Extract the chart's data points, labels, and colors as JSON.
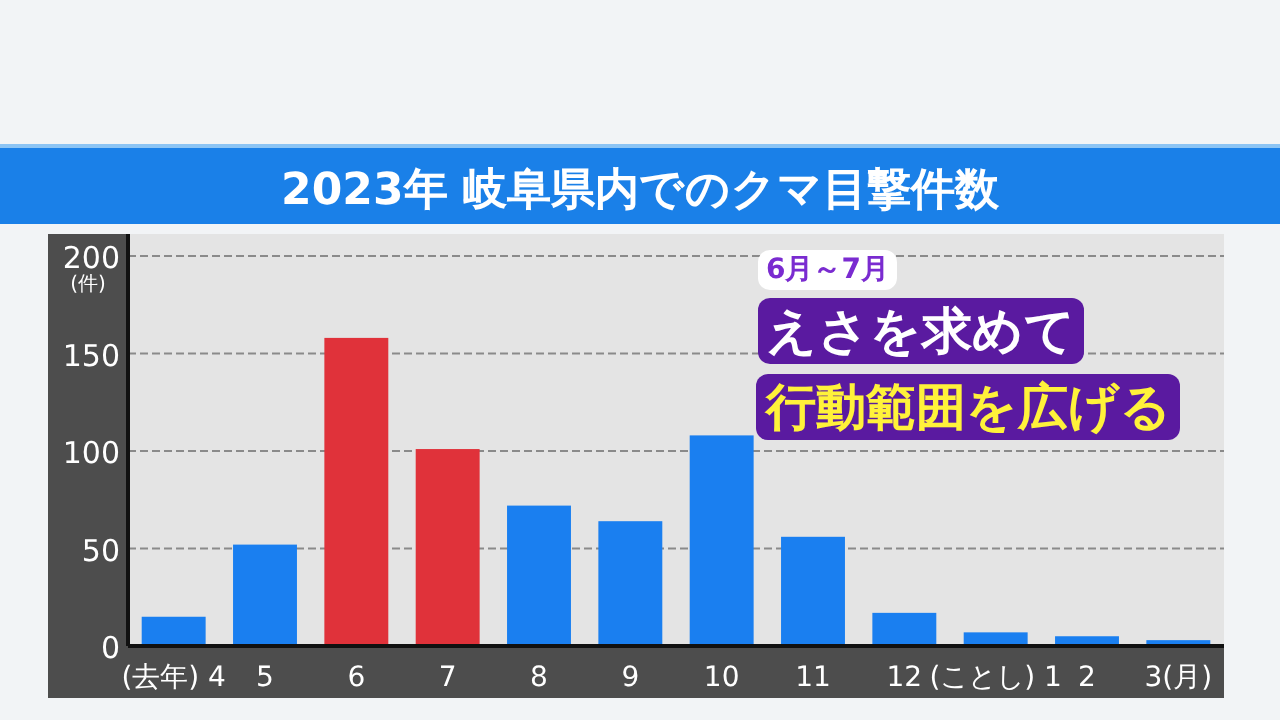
{
  "chart_data": {
    "type": "bar",
    "title": "2023年 岐阜県内でのクマ目撃件数",
    "categories": [
      "(去年) 4",
      "5",
      "6",
      "7",
      "8",
      "9",
      "10",
      "11",
      "12",
      "(ことし) 1",
      "2",
      "3(月)"
    ],
    "values": [
      15,
      52,
      158,
      101,
      72,
      64,
      108,
      56,
      17,
      7,
      5,
      3
    ],
    "colors": [
      "#1a7ff0",
      "#1a7ff0",
      "#e0323a",
      "#e0323a",
      "#1a7ff0",
      "#1a7ff0",
      "#1a7ff0",
      "#1a7ff0",
      "#1a7ff0",
      "#1a7ff0",
      "#1a7ff0",
      "#1a7ff0"
    ],
    "ylim": [
      0,
      200
    ],
    "yticks": [
      0,
      50,
      100,
      150,
      200
    ],
    "ylabel": "(件)",
    "grid": "y",
    "annotations": [
      "6月～7月",
      "えさを求めて",
      "行動範囲を広げる"
    ]
  }
}
